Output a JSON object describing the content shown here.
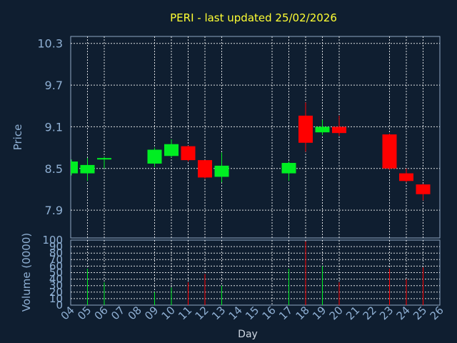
{
  "chart_data": {
    "type": "candlestick",
    "title": "PERI - last updated 25/02/2026",
    "price_axis": {
      "label": "Price",
      "ticks": [
        "7.9",
        "8.5",
        "9.1",
        "9.7",
        "10.3"
      ],
      "tick_values": [
        7.9,
        8.5,
        9.1,
        9.7,
        10.3
      ],
      "range": [
        7.5,
        10.4
      ]
    },
    "volume_axis": {
      "label": "Volume (0000)",
      "ticks": [
        "0",
        "10",
        "20",
        "30",
        "40",
        "50",
        "60",
        "70",
        "80",
        "90",
        "100"
      ],
      "tick_values": [
        0,
        10,
        20,
        30,
        40,
        50,
        60,
        70,
        80,
        90,
        100
      ],
      "range": [
        0,
        100
      ]
    },
    "x_axis": {
      "label": "Day",
      "ticks": [
        "04",
        "05",
        "06",
        "07",
        "08",
        "09",
        "10",
        "11",
        "12",
        "13",
        "14",
        "15",
        "16",
        "17",
        "18",
        "19",
        "20",
        "21",
        "22",
        "23",
        "24",
        "25",
        "26"
      ],
      "grid_days": [
        5,
        6,
        9,
        10,
        11,
        12,
        13,
        16,
        17,
        18,
        19,
        20,
        23,
        24,
        25
      ],
      "range": [
        4,
        26
      ]
    },
    "up_color": "#00ee22",
    "down_color": "#ff0000",
    "candles": [
      {
        "day": 4,
        "open": 8.43,
        "close": 8.6,
        "high": 8.63,
        "low": 8.4,
        "volume": 0
      },
      {
        "day": 5,
        "open": 8.43,
        "close": 8.55,
        "high": 8.65,
        "low": 8.32,
        "volume": 56
      },
      {
        "day": 6,
        "open": 8.64,
        "close": 8.65,
        "high": 8.67,
        "low": 8.5,
        "volume": 35
      },
      {
        "day": 9,
        "open": 8.57,
        "close": 8.77,
        "high": 8.8,
        "low": 8.52,
        "volume": 20
      },
      {
        "day": 10,
        "open": 8.68,
        "close": 8.85,
        "high": 8.92,
        "low": 8.66,
        "volume": 27
      },
      {
        "day": 11,
        "open": 8.82,
        "close": 8.62,
        "high": 8.83,
        "low": 8.6,
        "volume": 35
      },
      {
        "day": 12,
        "open": 8.62,
        "close": 8.37,
        "high": 8.62,
        "low": 8.35,
        "volume": 48
      },
      {
        "day": 13,
        "open": 8.38,
        "close": 8.54,
        "high": 8.73,
        "low": 8.3,
        "volume": 30
      },
      {
        "day": 17,
        "open": 8.43,
        "close": 8.58,
        "high": 8.6,
        "low": 8.32,
        "volume": 56
      },
      {
        "day": 18,
        "open": 9.26,
        "close": 8.87,
        "high": 9.45,
        "low": 8.74,
        "volume": 98
      },
      {
        "day": 19,
        "open": 9.02,
        "close": 9.1,
        "high": 9.2,
        "low": 8.98,
        "volume": 60
      },
      {
        "day": 20,
        "open": 9.1,
        "close": 9.01,
        "high": 9.26,
        "low": 8.97,
        "volume": 35
      },
      {
        "day": 23,
        "open": 8.99,
        "close": 8.5,
        "high": 9.0,
        "low": 8.48,
        "volume": 56
      },
      {
        "day": 24,
        "open": 8.43,
        "close": 8.32,
        "high": 8.5,
        "low": 8.3,
        "volume": 40
      },
      {
        "day": 25,
        "open": 8.27,
        "close": 8.13,
        "high": 8.28,
        "low": 8.04,
        "volume": 58
      }
    ]
  }
}
